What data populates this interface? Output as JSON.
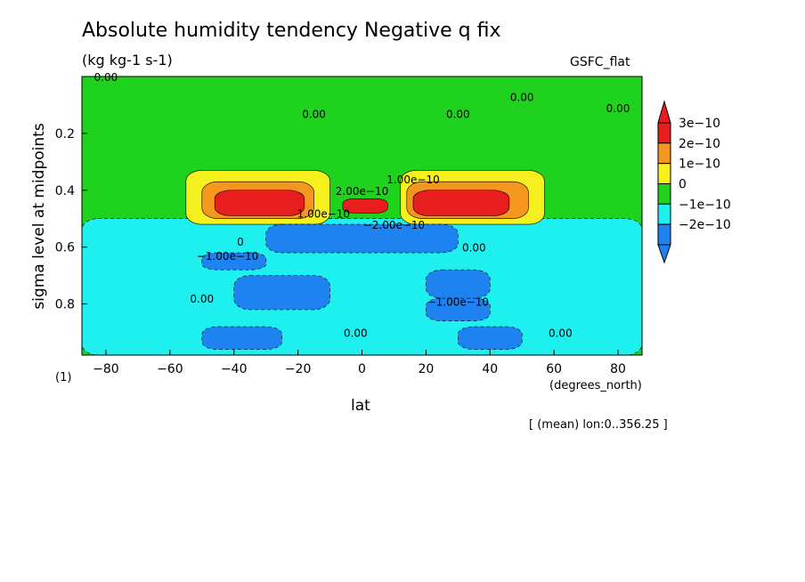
{
  "chart_data": {
    "type": "heatmap",
    "title": "Absolute humidity tendency Negative q fix",
    "units": "(kg kg-1 s-1)",
    "source_label": "GSFC_flat",
    "xlabel": "lat",
    "xunit": "(degrees_north)",
    "ylabel": "sigma level at midpoints",
    "y_note": "(1)",
    "mean_note": "[ (mean) lon:0..356.25 ]",
    "xlim": [
      -87.5,
      87.5
    ],
    "ylim": [
      0.0,
      0.98
    ],
    "y_inverted": true,
    "x_ticks": [
      -80,
      -60,
      -40,
      -20,
      0,
      20,
      40,
      60,
      80
    ],
    "y_ticks": [
      0.2,
      0.4,
      0.6,
      0.8
    ],
    "x_tick_labels": [
      "−80",
      "−60",
      "−40",
      "−20",
      "0",
      "20",
      "40",
      "60",
      "80"
    ],
    "y_tick_labels": [
      "0.2",
      "0.4",
      "0.6",
      "0.8"
    ],
    "colorbar": {
      "labels": [
        "3e−10",
        "2e−10",
        "1e−10",
        "0",
        "−1e−10",
        "−2e−10"
      ],
      "colors": [
        "#e81e1e",
        "#f5961e",
        "#f5f01e",
        "#1ed21e",
        "#1ef0f0",
        "#1e82f0"
      ]
    },
    "regions": [
      {
        "level": -1,
        "lat": [
          -87.5,
          87.5
        ],
        "sigma": [
          0.5,
          0.98
        ]
      },
      {
        "level": 1,
        "lat": [
          -55,
          -10
        ],
        "sigma": [
          0.33,
          0.52
        ]
      },
      {
        "level": 1,
        "lat": [
          12,
          57
        ],
        "sigma": [
          0.33,
          0.52
        ]
      },
      {
        "level": 2,
        "lat": [
          -50,
          -15
        ],
        "sigma": [
          0.37,
          0.5
        ]
      },
      {
        "level": 2,
        "lat": [
          14,
          52
        ],
        "sigma": [
          0.37,
          0.5
        ]
      },
      {
        "level": 3,
        "lat": [
          -46,
          -18
        ],
        "sigma": [
          0.4,
          0.49
        ]
      },
      {
        "level": 3,
        "lat": [
          16,
          46
        ],
        "sigma": [
          0.4,
          0.49
        ]
      },
      {
        "level": 3,
        "lat": [
          -6,
          8
        ],
        "sigma": [
          0.43,
          0.48
        ]
      },
      {
        "level": -2,
        "lat": [
          -30,
          30
        ],
        "sigma": [
          0.52,
          0.62
        ]
      },
      {
        "level": -2,
        "lat": [
          -50,
          -30
        ],
        "sigma": [
          0.62,
          0.68
        ]
      },
      {
        "level": -2,
        "lat": [
          -40,
          -10
        ],
        "sigma": [
          0.7,
          0.82
        ]
      },
      {
        "level": -2,
        "lat": [
          20,
          40
        ],
        "sigma": [
          0.68,
          0.78
        ]
      },
      {
        "level": -2,
        "lat": [
          20,
          40
        ],
        "sigma": [
          0.78,
          0.86
        ]
      },
      {
        "level": -2,
        "lat": [
          -50,
          -25
        ],
        "sigma": [
          0.88,
          0.96
        ]
      },
      {
        "level": -2,
        "lat": [
          30,
          50
        ],
        "sigma": [
          0.88,
          0.96
        ]
      }
    ],
    "contour_labels": [
      {
        "text": "0.00",
        "lat": -80,
        "sigma": 0.0
      },
      {
        "text": "0.00",
        "lat": 50,
        "sigma": 0.07
      },
      {
        "text": "0.00",
        "lat": 80,
        "sigma": 0.11
      },
      {
        "text": "0.00",
        "lat": -15,
        "sigma": 0.13
      },
      {
        "text": "0.00",
        "lat": 30,
        "sigma": 0.13
      },
      {
        "text": "2.00e−10",
        "lat": 0,
        "sigma": 0.4
      },
      {
        "text": "1.00e−10",
        "lat": 16,
        "sigma": 0.36
      },
      {
        "text": "−2.00e−10",
        "lat": 10,
        "sigma": 0.52
      },
      {
        "text": "1.00e−10",
        "lat": -12,
        "sigma": 0.48
      },
      {
        "text": "0",
        "lat": -38,
        "sigma": 0.58
      },
      {
        "text": "−1.00e−10",
        "lat": -42,
        "sigma": 0.63
      },
      {
        "text": "0.00",
        "lat": 35,
        "sigma": 0.6
      },
      {
        "text": "0.00",
        "lat": -50,
        "sigma": 0.78
      },
      {
        "text": "−1.00e−10",
        "lat": 30,
        "sigma": 0.79
      },
      {
        "text": "0.00",
        "lat": -2,
        "sigma": 0.9
      },
      {
        "text": "0.00",
        "lat": 62,
        "sigma": 0.9
      }
    ]
  }
}
